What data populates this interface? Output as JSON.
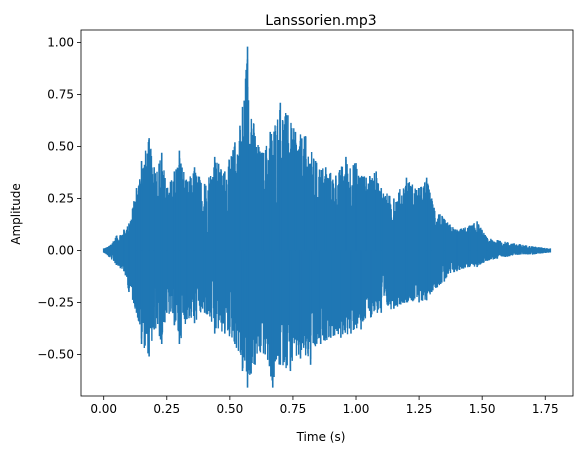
{
  "chart_data": {
    "type": "line",
    "title": "Lanssorien.mp3",
    "xlabel": "Time (s)",
    "ylabel": "Amplitude",
    "xlim": [
      -0.09,
      1.86
    ],
    "ylim": [
      -0.7,
      1.06
    ],
    "x_ticks": [
      0.0,
      0.25,
      0.5,
      0.75,
      1.0,
      1.25,
      1.5,
      1.75
    ],
    "x_tick_labels": [
      "0.00",
      "0.25",
      "0.50",
      "0.75",
      "1.00",
      "1.25",
      "1.50",
      "1.75"
    ],
    "y_ticks": [
      -0.5,
      -0.25,
      0.0,
      0.25,
      0.5,
      0.75,
      1.0
    ],
    "y_tick_labels": [
      "−0.50",
      "−0.25",
      "0.00",
      "0.25",
      "0.50",
      "0.75",
      "1.00"
    ],
    "grid": false,
    "color": "#1f77b4",
    "duration": 1.77,
    "envelope_upper": [
      [
        0.0,
        0.01
      ],
      [
        0.02,
        0.02
      ],
      [
        0.05,
        0.07
      ],
      [
        0.08,
        0.1
      ],
      [
        0.1,
        0.13
      ],
      [
        0.13,
        0.3
      ],
      [
        0.15,
        0.43
      ],
      [
        0.18,
        0.54
      ],
      [
        0.2,
        0.4
      ],
      [
        0.23,
        0.47
      ],
      [
        0.25,
        0.3
      ],
      [
        0.28,
        0.38
      ],
      [
        0.3,
        0.48
      ],
      [
        0.33,
        0.33
      ],
      [
        0.36,
        0.4
      ],
      [
        0.4,
        0.32
      ],
      [
        0.44,
        0.45
      ],
      [
        0.48,
        0.38
      ],
      [
        0.52,
        0.52
      ],
      [
        0.54,
        0.6
      ],
      [
        0.57,
        0.98
      ],
      [
        0.6,
        0.55
      ],
      [
        0.63,
        0.47
      ],
      [
        0.66,
        0.57
      ],
      [
        0.7,
        0.71
      ],
      [
        0.73,
        0.65
      ],
      [
        0.76,
        0.57
      ],
      [
        0.8,
        0.55
      ],
      [
        0.84,
        0.43
      ],
      [
        0.88,
        0.4
      ],
      [
        0.92,
        0.36
      ],
      [
        0.96,
        0.45
      ],
      [
        1.0,
        0.42
      ],
      [
        1.04,
        0.35
      ],
      [
        1.08,
        0.38
      ],
      [
        1.1,
        0.3
      ],
      [
        1.15,
        0.25
      ],
      [
        1.2,
        0.35
      ],
      [
        1.25,
        0.3
      ],
      [
        1.28,
        0.35
      ],
      [
        1.3,
        0.25
      ],
      [
        1.35,
        0.15
      ],
      [
        1.4,
        0.1
      ],
      [
        1.45,
        0.12
      ],
      [
        1.48,
        0.14
      ],
      [
        1.52,
        0.06
      ],
      [
        1.56,
        0.05
      ],
      [
        1.6,
        0.04
      ],
      [
        1.65,
        0.03
      ],
      [
        1.7,
        0.02
      ],
      [
        1.77,
        0.01
      ]
    ],
    "envelope_lower": [
      [
        0.0,
        -0.01
      ],
      [
        0.02,
        -0.03
      ],
      [
        0.05,
        -0.07
      ],
      [
        0.08,
        -0.1
      ],
      [
        0.1,
        -0.2
      ],
      [
        0.13,
        -0.3
      ],
      [
        0.15,
        -0.45
      ],
      [
        0.18,
        -0.51
      ],
      [
        0.2,
        -0.38
      ],
      [
        0.23,
        -0.45
      ],
      [
        0.25,
        -0.3
      ],
      [
        0.28,
        -0.36
      ],
      [
        0.3,
        -0.45
      ],
      [
        0.33,
        -0.33
      ],
      [
        0.36,
        -0.35
      ],
      [
        0.4,
        -0.3
      ],
      [
        0.44,
        -0.4
      ],
      [
        0.48,
        -0.4
      ],
      [
        0.52,
        -0.45
      ],
      [
        0.55,
        -0.58
      ],
      [
        0.57,
        -0.66
      ],
      [
        0.6,
        -0.55
      ],
      [
        0.64,
        -0.5
      ],
      [
        0.67,
        -0.66
      ],
      [
        0.7,
        -0.55
      ],
      [
        0.74,
        -0.58
      ],
      [
        0.78,
        -0.52
      ],
      [
        0.82,
        -0.55
      ],
      [
        0.86,
        -0.45
      ],
      [
        0.9,
        -0.42
      ],
      [
        0.94,
        -0.42
      ],
      [
        0.98,
        -0.4
      ],
      [
        1.02,
        -0.38
      ],
      [
        1.06,
        -0.32
      ],
      [
        1.1,
        -0.3
      ],
      [
        1.15,
        -0.28
      ],
      [
        1.2,
        -0.25
      ],
      [
        1.25,
        -0.25
      ],
      [
        1.28,
        -0.24
      ],
      [
        1.3,
        -0.2
      ],
      [
        1.35,
        -0.15
      ],
      [
        1.4,
        -0.1
      ],
      [
        1.45,
        -0.08
      ],
      [
        1.48,
        -0.08
      ],
      [
        1.52,
        -0.05
      ],
      [
        1.56,
        -0.04
      ],
      [
        1.6,
        -0.03
      ],
      [
        1.65,
        -0.02
      ],
      [
        1.7,
        -0.02
      ],
      [
        1.77,
        -0.01
      ]
    ]
  }
}
